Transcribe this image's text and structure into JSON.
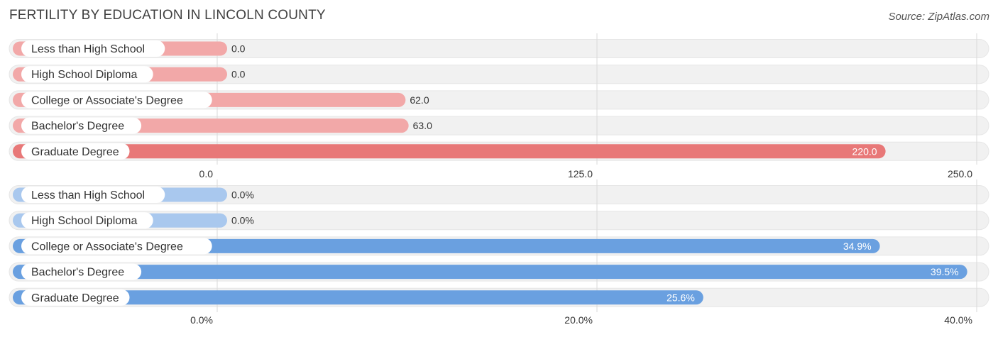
{
  "title": "FERTILITY BY EDUCATION IN LINCOLN COUNTY",
  "source": "Source: ZipAtlas.com",
  "colors": {
    "top_light": "#f2a8a8",
    "top_dark": "#e87878",
    "bottom_light": "#a9c8ee",
    "bottom_dark": "#6aa0e0",
    "row_bg": "#f1f1f1",
    "grid": "#d9d9d9"
  },
  "chart_data": [
    {
      "type": "bar",
      "orientation": "horizontal",
      "categories": [
        "Less than High School",
        "High School Diploma",
        "College or Associate's Degree",
        "Bachelor's Degree",
        "Graduate Degree"
      ],
      "values": [
        0.0,
        0.0,
        62.0,
        63.0,
        220.0
      ],
      "value_labels": [
        "0.0",
        "0.0",
        "62.0",
        "63.0",
        "220.0"
      ],
      "xlim": [
        0,
        250
      ],
      "ticks": [
        0,
        125,
        250
      ],
      "tick_labels": [
        "0.0",
        "125.0",
        "250.0"
      ],
      "highlight_index": 4,
      "grid": true
    },
    {
      "type": "bar",
      "orientation": "horizontal",
      "categories": [
        "Less than High School",
        "High School Diploma",
        "College or Associate's Degree",
        "Bachelor's Degree",
        "Graduate Degree"
      ],
      "values": [
        0.0,
        0.0,
        34.9,
        39.5,
        25.6
      ],
      "value_labels": [
        "0.0%",
        "0.0%",
        "34.9%",
        "39.5%",
        "25.6%"
      ],
      "xlim": [
        0,
        40
      ],
      "ticks": [
        0,
        20,
        40
      ],
      "tick_labels": [
        "0.0%",
        "20.0%",
        "40.0%"
      ],
      "highlight_index": 3,
      "grid": true
    }
  ]
}
